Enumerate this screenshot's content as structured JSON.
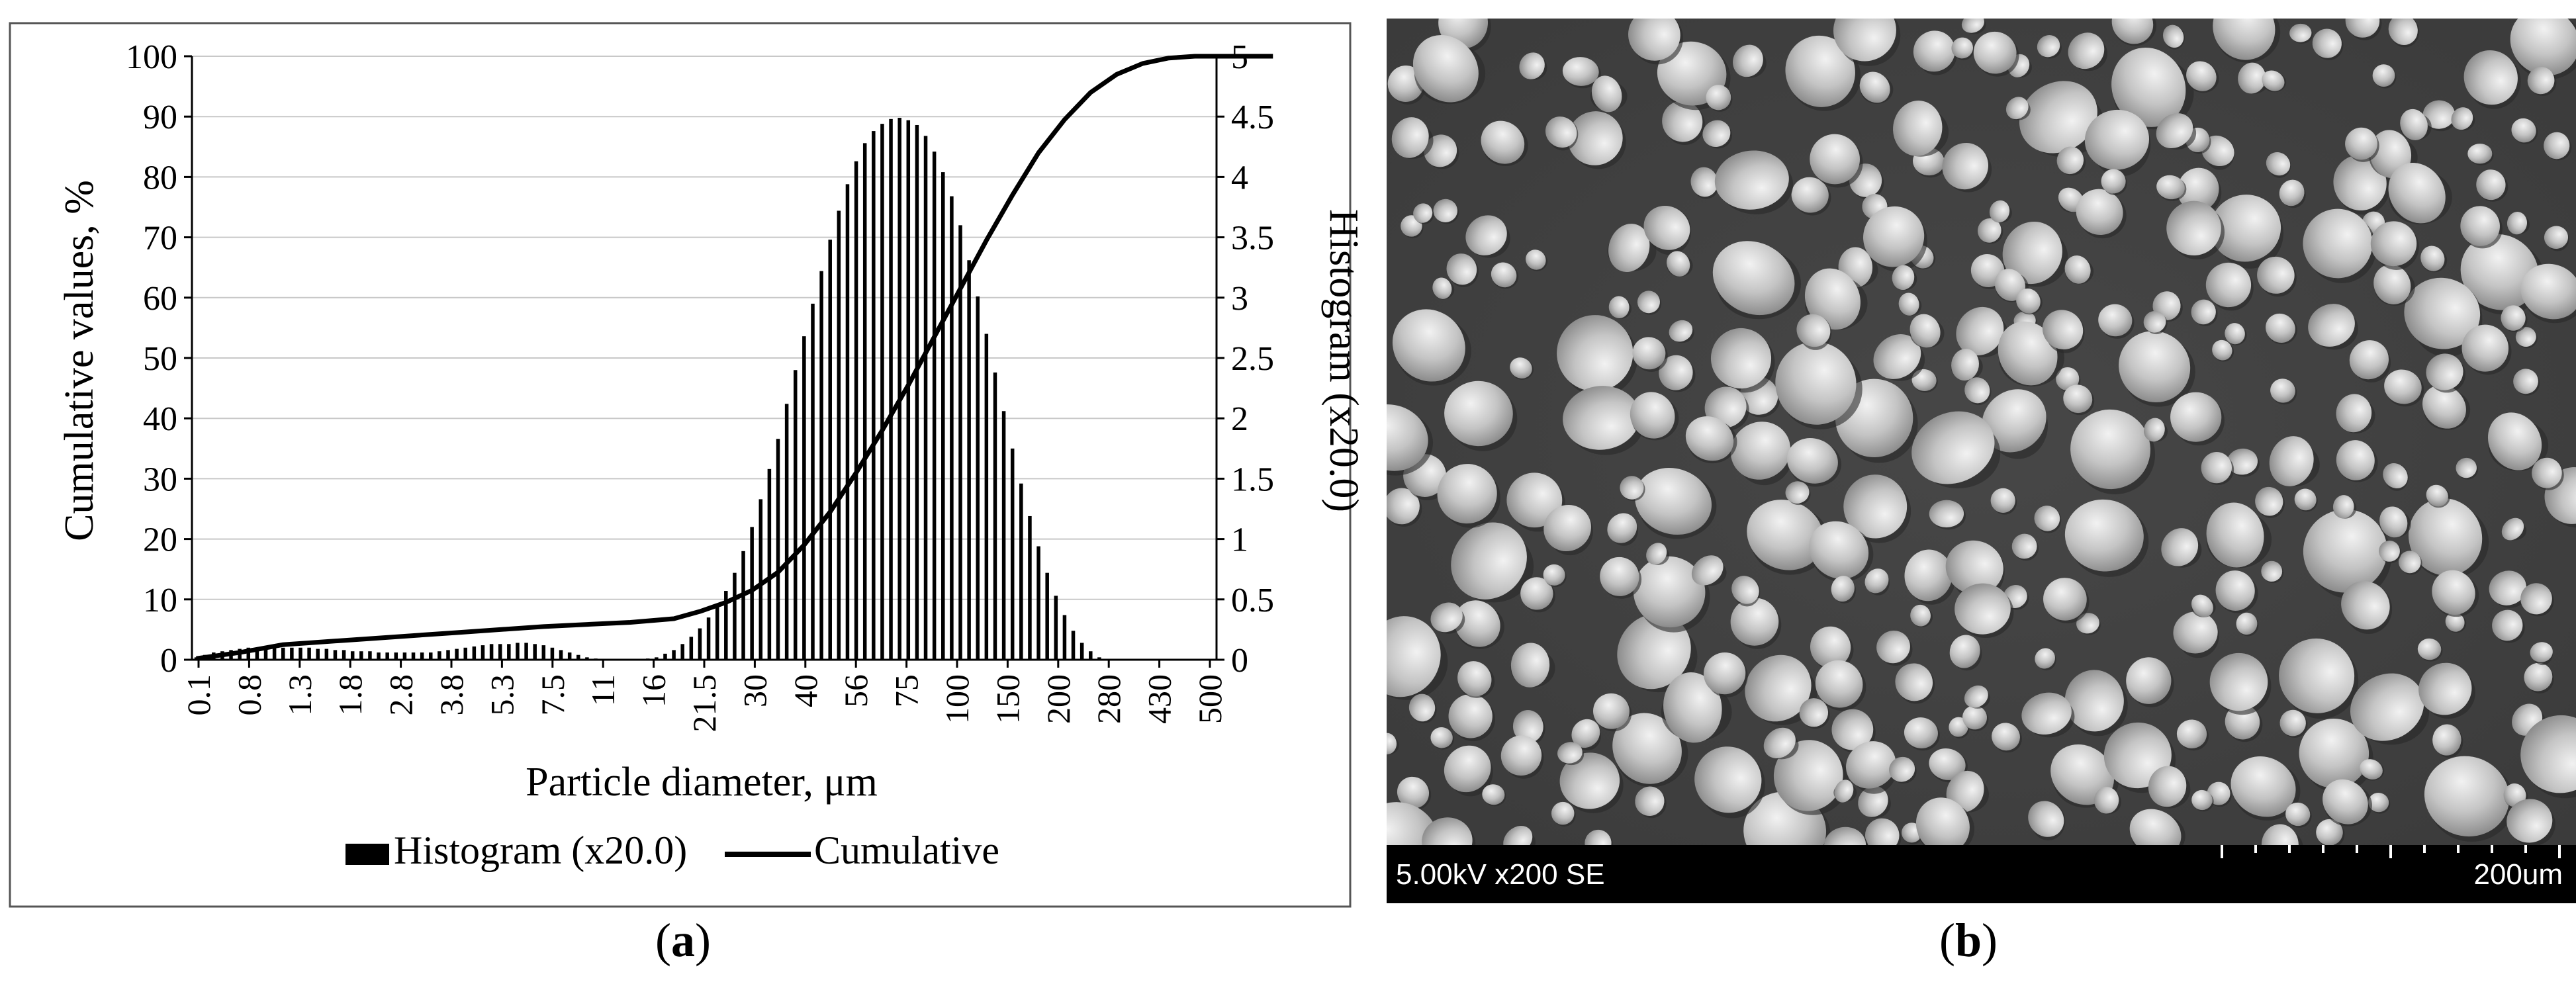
{
  "chart_data": {
    "type": "bar+line",
    "xlabel": "Particle diameter, μm",
    "ylabel": "Cumulative values, %",
    "y2label": "Histogram (x20.0)",
    "ylim": [
      0,
      100
    ],
    "y2lim": [
      0,
      5
    ],
    "yticks": [
      "0",
      "10",
      "20",
      "30",
      "40",
      "50",
      "60",
      "70",
      "80",
      "90",
      "100"
    ],
    "y2ticks": [
      "0",
      "0.5",
      "1",
      "1.5",
      "2",
      "2.5",
      "3",
      "3.5",
      "4",
      "4.5",
      "5"
    ],
    "xtick_labels": [
      "0.1",
      "0.8",
      "1.3",
      "1.8",
      "2.8",
      "3.8",
      "5.3",
      "7.5",
      "11",
      "16",
      "21.5",
      "30",
      "40",
      "56",
      "75",
      "100",
      "150",
      "200",
      "280",
      "430",
      "500"
    ],
    "grid": "horizontal",
    "legend_position": "bottom",
    "series": [
      {
        "name": "Histogram (x20.0)",
        "type": "bar",
        "axis": "right",
        "values": [
          0.02,
          0.04,
          0.06,
          0.07,
          0.08,
          0.09,
          0.1,
          0.1,
          0.1,
          0.1,
          0.1,
          0.1,
          0.1,
          0.1,
          0.09,
          0.09,
          0.08,
          0.08,
          0.07,
          0.07,
          0.07,
          0.06,
          0.06,
          0.06,
          0.06,
          0.06,
          0.06,
          0.06,
          0.07,
          0.08,
          0.09,
          0.1,
          0.11,
          0.12,
          0.13,
          0.13,
          0.13,
          0.14,
          0.14,
          0.13,
          0.12,
          0.1,
          0.08,
          0.06,
          0.04,
          0.02,
          0.01,
          0.0,
          0.0,
          0.0,
          0.0,
          0.0,
          0.01,
          0.02,
          0.05,
          0.08,
          0.13,
          0.19,
          0.26,
          0.35,
          0.45,
          0.57,
          0.72,
          0.9,
          1.1,
          1.33,
          1.58,
          1.83,
          2.12,
          2.4,
          2.68,
          2.95,
          3.22,
          3.48,
          3.72,
          3.94,
          4.13,
          4.28,
          4.38,
          4.44,
          4.48,
          4.49,
          4.47,
          4.43,
          4.34,
          4.21,
          4.04,
          3.84,
          3.6,
          3.31,
          3.01,
          2.7,
          2.38,
          2.06,
          1.75,
          1.46,
          1.19,
          0.94,
          0.72,
          0.53,
          0.37,
          0.24,
          0.14,
          0.07,
          0.02,
          0.0,
          0.0,
          0.0,
          0.0,
          0.0,
          0.0,
          0.0,
          0.0,
          0.0,
          0.0,
          0.0,
          0.0,
          0.0
        ]
      },
      {
        "name": "Cumulative",
        "type": "line",
        "axis": "left",
        "points": [
          [
            0,
            0.2
          ],
          [
            5,
            1.2
          ],
          [
            10,
            2.5
          ],
          [
            20,
            3.5
          ],
          [
            30,
            4.5
          ],
          [
            40,
            5.5
          ],
          [
            50,
            6.2
          ],
          [
            55,
            6.8
          ],
          [
            58,
            8.0
          ],
          [
            61,
            9.5
          ],
          [
            64,
            11.5
          ],
          [
            67,
            14.5
          ],
          [
            70,
            19.0
          ],
          [
            73,
            24.5
          ],
          [
            76,
            31.0
          ],
          [
            79,
            38.0
          ],
          [
            82,
            45.5
          ],
          [
            85,
            53.5
          ],
          [
            88,
            61.5
          ],
          [
            91,
            69.5
          ],
          [
            94,
            77.0
          ],
          [
            97,
            84.0
          ],
          [
            100,
            89.5
          ],
          [
            103,
            94.0
          ],
          [
            106,
            97.0
          ],
          [
            109,
            98.8
          ],
          [
            112,
            99.7
          ],
          [
            115,
            100
          ],
          [
            124,
            100
          ]
        ]
      }
    ]
  },
  "legend": {
    "histogram": "Histogram (x20.0)",
    "cumulative": "Cumulative"
  },
  "sem": {
    "settings": "5.00kV x200 SE",
    "scale": "200um"
  },
  "labels": {
    "a_open": "(",
    "a": "a",
    "a_close": ")",
    "b_open": "(",
    "b": "b",
    "b_close": ")"
  }
}
